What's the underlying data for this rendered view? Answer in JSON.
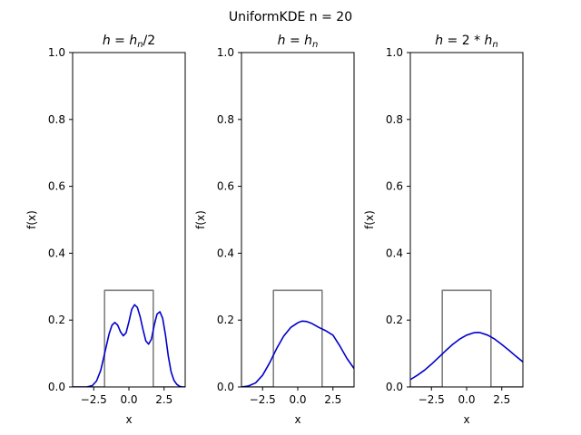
{
  "suptitle": "UniformKDE n = 20",
  "chart_data": [
    {
      "type": "line",
      "title": "h = h_n/2",
      "title_parts": [
        "h",
        " = ",
        "h",
        "n",
        "/2"
      ],
      "xlabel": "x",
      "ylabel": "f(x)",
      "xlim": [
        -4.0,
        4.0
      ],
      "ylim": [
        0.0,
        1.0
      ],
      "xticks": [
        -2.5,
        0.0,
        2.5
      ],
      "xtick_labels": [
        "−2.5",
        "0.0",
        "2.5"
      ],
      "yticks": [
        0.0,
        0.2,
        0.4,
        0.6,
        0.8,
        1.0
      ],
      "ytick_labels": [
        "0.0",
        "0.2",
        "0.4",
        "0.6",
        "0.8",
        "1.0"
      ],
      "series": [
        {
          "color": "#808080",
          "x": [
            -4.0,
            -1.73,
            -1.73,
            1.73,
            1.73,
            4.0
          ],
          "y": [
            0.0,
            0.0,
            0.289,
            0.289,
            0.0,
            0.0
          ]
        },
        {
          "color": "#0000cc",
          "x": [
            -4.0,
            -3.0,
            -2.6,
            -2.3,
            -2.0,
            -1.7,
            -1.4,
            -1.2,
            -1.0,
            -0.8,
            -0.6,
            -0.4,
            -0.2,
            0.0,
            0.2,
            0.4,
            0.6,
            0.8,
            1.0,
            1.2,
            1.4,
            1.6,
            1.8,
            2.0,
            2.2,
            2.4,
            2.6,
            2.8,
            3.0,
            3.2,
            3.4,
            3.6,
            3.8,
            4.0
          ],
          "y": [
            0.0,
            0.0,
            0.004,
            0.018,
            0.05,
            0.105,
            0.16,
            0.185,
            0.193,
            0.185,
            0.165,
            0.153,
            0.162,
            0.195,
            0.232,
            0.246,
            0.238,
            0.21,
            0.172,
            0.138,
            0.128,
            0.143,
            0.185,
            0.218,
            0.225,
            0.205,
            0.155,
            0.092,
            0.045,
            0.02,
            0.008,
            0.002,
            0.0,
            0.0
          ]
        }
      ]
    },
    {
      "type": "line",
      "title": "h = h_n",
      "title_parts": [
        "h",
        " = ",
        "h",
        "n",
        ""
      ],
      "xlabel": "x",
      "ylabel": "f(x)",
      "xlim": [
        -4.0,
        4.0
      ],
      "ylim": [
        0.0,
        1.0
      ],
      "xticks": [
        -2.5,
        0.0,
        2.5
      ],
      "xtick_labels": [
        "−2.5",
        "0.0",
        "2.5"
      ],
      "yticks": [
        0.0,
        0.2,
        0.4,
        0.6,
        0.8,
        1.0
      ],
      "ytick_labels": [
        "0.0",
        "0.2",
        "0.4",
        "0.6",
        "0.8",
        "1.0"
      ],
      "series": [
        {
          "color": "#808080",
          "x": [
            -4.0,
            -1.73,
            -1.73,
            1.73,
            1.73,
            4.0
          ],
          "y": [
            0.0,
            0.0,
            0.289,
            0.289,
            0.0,
            0.0
          ]
        },
        {
          "color": "#0000cc",
          "x": [
            -4.0,
            -3.5,
            -3.0,
            -2.5,
            -2.0,
            -1.5,
            -1.0,
            -0.5,
            0.0,
            0.3,
            0.6,
            1.0,
            1.5,
            2.0,
            2.5,
            3.0,
            3.5,
            4.0
          ],
          "y": [
            0.0,
            0.003,
            0.012,
            0.035,
            0.072,
            0.115,
            0.152,
            0.178,
            0.192,
            0.197,
            0.196,
            0.19,
            0.178,
            0.168,
            0.155,
            0.122,
            0.085,
            0.055
          ]
        }
      ]
    },
    {
      "type": "line",
      "title": "h = 2 * h_n",
      "title_parts": [
        "h",
        " = 2 * ",
        "h",
        "n",
        ""
      ],
      "xlabel": "x",
      "ylabel": "f(x)",
      "xlim": [
        -4.0,
        4.0
      ],
      "ylim": [
        0.0,
        1.0
      ],
      "xticks": [
        -2.5,
        0.0,
        2.5
      ],
      "xtick_labels": [
        "−2.5",
        "0.0",
        "2.5"
      ],
      "yticks": [
        0.0,
        0.2,
        0.4,
        0.6,
        0.8,
        1.0
      ],
      "ytick_labels": [
        "0.0",
        "0.2",
        "0.4",
        "0.6",
        "0.8",
        "1.0"
      ],
      "series": [
        {
          "color": "#808080",
          "x": [
            -4.0,
            -1.73,
            -1.73,
            1.73,
            1.73,
            4.0
          ],
          "y": [
            0.0,
            0.0,
            0.289,
            0.289,
            0.0,
            0.0
          ]
        },
        {
          "color": "#0000cc",
          "x": [
            -4.0,
            -3.5,
            -3.0,
            -2.5,
            -2.0,
            -1.5,
            -1.0,
            -0.5,
            0.0,
            0.5,
            0.8,
            1.0,
            1.5,
            2.0,
            2.5,
            3.0,
            3.5,
            4.0
          ],
          "y": [
            0.022,
            0.035,
            0.05,
            0.068,
            0.088,
            0.108,
            0.127,
            0.143,
            0.155,
            0.162,
            0.163,
            0.162,
            0.155,
            0.143,
            0.127,
            0.11,
            0.092,
            0.075
          ]
        }
      ]
    }
  ]
}
